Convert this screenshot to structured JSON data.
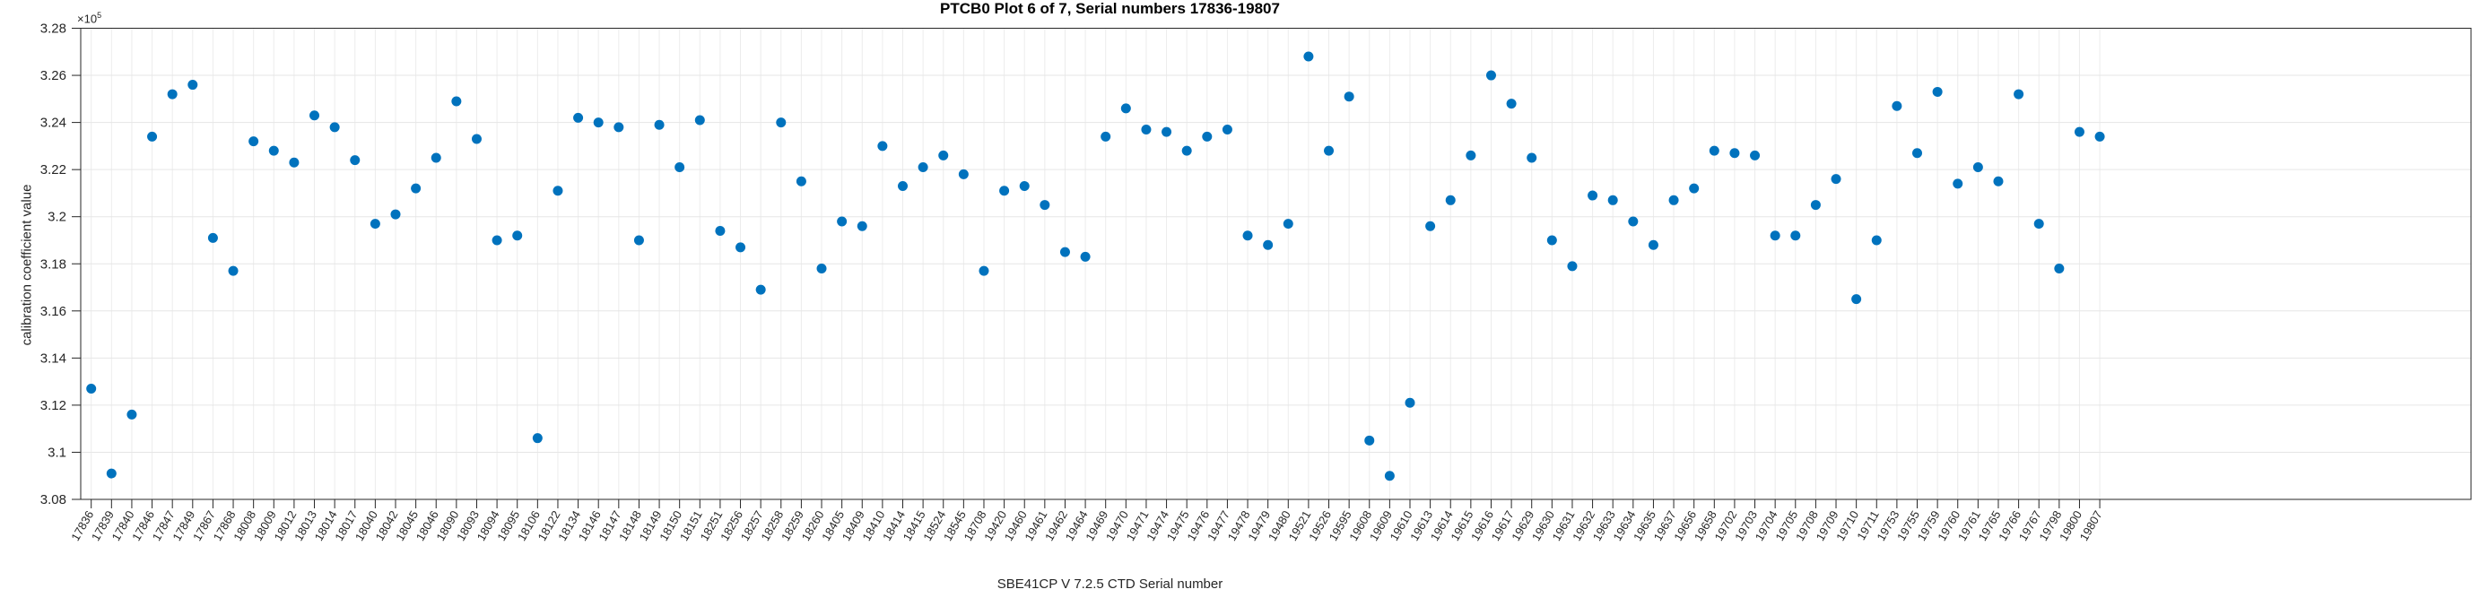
{
  "figure": {
    "title": "PTCB0 Plot 6 of 7, Serial numbers 17836-19807",
    "xlabel": "SBE41CP V 7.2.5 CTD Serial number",
    "ylabel": "calibration coefficient value",
    "exponent_label": "×10",
    "exponent_value": "5"
  },
  "chart_data": {
    "type": "scatter",
    "title": "PTCB0 Plot 6 of 7, Serial numbers 17836-19807",
    "xlabel": "SBE41CP V 7.2.5 CTD Serial number",
    "ylabel": "calibration coefficient value",
    "y_unit_multiplier": 100000,
    "ylim": [
      3.08,
      3.28
    ],
    "y_ticks": [
      3.08,
      3.1,
      3.12,
      3.14,
      3.16,
      3.18,
      3.2,
      3.22,
      3.24,
      3.26,
      3.28
    ],
    "y_tick_labels": [
      "3.08",
      "3.1",
      "3.12",
      "3.14",
      "3.16",
      "3.18",
      "3.2",
      "3.22",
      "3.24",
      "3.26",
      "3.28"
    ],
    "grid": true,
    "legend_position": "none",
    "marker_color": "#0072BD",
    "x_tick_labels": [
      "17836",
      "17839",
      "17840",
      "17846",
      "17847",
      "17849",
      "17867",
      "17868",
      "18008",
      "18009",
      "18012",
      "18013",
      "18014",
      "18017",
      "18040",
      "18042",
      "18045",
      "18046",
      "18090",
      "18093",
      "18094",
      "18095",
      "18106",
      "18122",
      "18134",
      "18146",
      "18147",
      "18148",
      "18149",
      "18150",
      "18151",
      "18251",
      "18256",
      "18257",
      "18258",
      "18259",
      "18260",
      "18405",
      "18409",
      "18410",
      "18414",
      "18415",
      "18524",
      "18545",
      "18708",
      "19420",
      "19460",
      "19461",
      "19462",
      "19464",
      "19469",
      "19470",
      "19471",
      "19474",
      "19475",
      "19476",
      "19477",
      "19478",
      "19479",
      "19480",
      "19521",
      "19526",
      "19595",
      "19608",
      "19609",
      "19610",
      "19613",
      "19614",
      "19615",
      "19616",
      "19617",
      "19629",
      "19630",
      "19631",
      "19632",
      "19633",
      "19634",
      "19635",
      "19637",
      "19656",
      "19658",
      "19702",
      "19703",
      "19704",
      "19705",
      "19708",
      "19709",
      "19710",
      "19711",
      "19753",
      "19755",
      "19759",
      "19760",
      "19761",
      "19765",
      "19766",
      "19767",
      "19798",
      "19800",
      "19807"
    ],
    "values": [
      3.127,
      3.091,
      3.116,
      3.234,
      3.252,
      3.256,
      3.191,
      3.177,
      3.232,
      3.228,
      3.223,
      3.243,
      3.238,
      3.224,
      3.197,
      3.201,
      3.212,
      3.225,
      3.249,
      3.233,
      3.19,
      3.192,
      3.106,
      3.211,
      3.242,
      3.24,
      3.238,
      3.19,
      3.239,
      3.221,
      3.241,
      3.194,
      3.187,
      3.169,
      3.24,
      3.215,
      3.178,
      3.198,
      3.196,
      3.23,
      3.213,
      3.221,
      3.226,
      3.218,
      3.177,
      3.211,
      3.213,
      3.205,
      3.185,
      3.183,
      3.234,
      3.246,
      3.237,
      3.236,
      3.228,
      3.234,
      3.237,
      3.192,
      3.188,
      3.197,
      3.268,
      3.228,
      3.251,
      3.105,
      3.09,
      3.121,
      3.196,
      3.207,
      3.226,
      3.26,
      3.248,
      3.225,
      3.19,
      3.179,
      3.209,
      3.207,
      3.198,
      3.188,
      3.207,
      3.212,
      3.228,
      3.227,
      3.226,
      3.192,
      3.192,
      3.205,
      3.216,
      3.165,
      3.19,
      3.247,
      3.227,
      3.253,
      3.214,
      3.221,
      3.215,
      3.252,
      3.197,
      3.178,
      3.236,
      3.234
    ]
  }
}
